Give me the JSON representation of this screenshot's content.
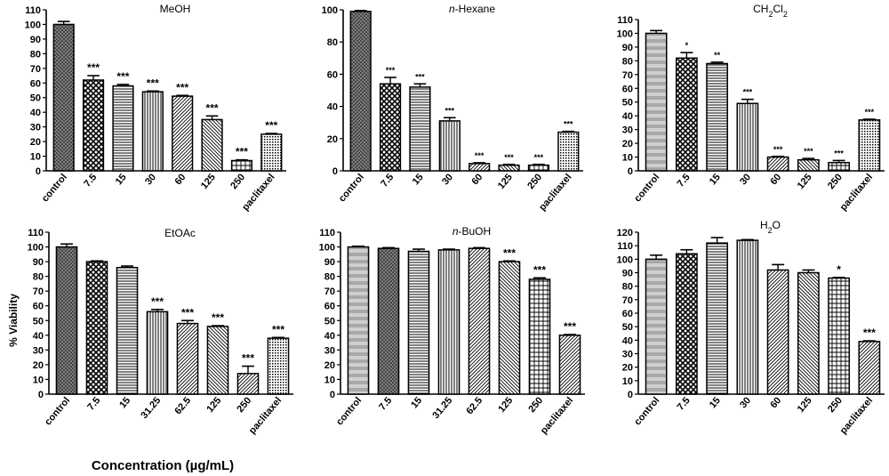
{
  "figure": {
    "shared_ylabel": "% Viability",
    "shared_xlabel": "Concentration (µg/mL)"
  },
  "chart_data": [
    {
      "type": "bar",
      "title_parts": [
        {
          "t": "MeOH"
        }
      ],
      "categories": [
        "control",
        "7.5",
        "15",
        "30",
        "60",
        "125",
        "250",
        "paclitaxel"
      ],
      "values": [
        100,
        62,
        58,
        54,
        51,
        35,
        7,
        25
      ],
      "errors": [
        2,
        3,
        1,
        0.5,
        0.5,
        2.5,
        0.5,
        0.5
      ],
      "significance": [
        "",
        "***",
        "***",
        "***",
        "***",
        "***",
        "***",
        "***"
      ],
      "ylim": [
        0,
        110
      ],
      "yticks": [
        0,
        10,
        20,
        30,
        40,
        50,
        60,
        70,
        80,
        90,
        100,
        110
      ],
      "patterns": [
        "p1",
        "p2",
        "p3",
        "p4",
        "p5",
        "p6",
        "p7",
        "p8"
      ]
    },
    {
      "type": "bar",
      "title_parts": [
        {
          "t": "n",
          "i": true
        },
        {
          "t": "-Hexane"
        }
      ],
      "categories": [
        "control",
        "7.5",
        "15",
        "30",
        "60",
        "125",
        "250",
        "paclitaxel"
      ],
      "values": [
        99,
        54,
        52,
        31,
        4.5,
        3.5,
        3.5,
        24
      ],
      "errors": [
        0.5,
        4,
        2,
        2,
        0.5,
        0.5,
        0.5,
        0.5
      ],
      "significance": [
        "",
        "***",
        "***",
        "***",
        "***",
        "***",
        "***",
        "***"
      ],
      "ylim": [
        0,
        100
      ],
      "yticks": [
        0,
        20,
        40,
        60,
        80,
        100
      ],
      "patterns": [
        "p1",
        "p2",
        "p3",
        "p4",
        "p5",
        "p6",
        "p7",
        "p8"
      ]
    },
    {
      "type": "bar",
      "title_parts": [
        {
          "t": "CH"
        },
        {
          "t": "2",
          "sub": true
        },
        {
          "t": "Cl"
        },
        {
          "t": "2",
          "sub": true
        }
      ],
      "categories": [
        "control",
        "7.5",
        "15",
        "30",
        "60",
        "125",
        "250",
        "paclitaxel"
      ],
      "values": [
        100,
        82,
        78,
        49,
        10,
        8,
        6,
        37
      ],
      "errors": [
        2,
        4,
        1,
        3,
        0.5,
        1,
        1.5,
        0.5
      ],
      "significance": [
        "",
        "*",
        "**",
        "***",
        "***",
        "***",
        "***",
        "***"
      ],
      "ylim": [
        0,
        110
      ],
      "yticks": [
        0,
        10,
        20,
        30,
        40,
        50,
        60,
        70,
        80,
        90,
        100,
        110
      ],
      "patterns": [
        "p9",
        "p2",
        "p3",
        "p4",
        "p5",
        "p6",
        "p7",
        "p8"
      ]
    },
    {
      "type": "bar",
      "title_parts": [
        {
          "t": "EtOAc"
        }
      ],
      "categories": [
        "control",
        "7.5",
        "15",
        "31.25",
        "62.5",
        "125",
        "250",
        "paclitaxel"
      ],
      "values": [
        100,
        90,
        86,
        56,
        48,
        46,
        14,
        38
      ],
      "errors": [
        2,
        0.5,
        1,
        1.5,
        2,
        0.5,
        5,
        0.5
      ],
      "significance": [
        "",
        "",
        "",
        "***",
        "***",
        "***",
        "***",
        "***"
      ],
      "ylim": [
        0,
        110
      ],
      "yticks": [
        0,
        10,
        20,
        30,
        40,
        50,
        60,
        70,
        80,
        90,
        100,
        110
      ],
      "patterns": [
        "p1",
        "p2",
        "p3",
        "p4",
        "p5",
        "p6",
        "p5",
        "p8"
      ]
    },
    {
      "type": "bar",
      "title_parts": [
        {
          "t": "n",
          "i": true
        },
        {
          "t": "-BuOH"
        }
      ],
      "categories": [
        "control",
        "7.5",
        "15",
        "31.25",
        "62.5",
        "125",
        "250",
        "paclitaxel"
      ],
      "values": [
        100,
        99,
        97,
        98,
        99,
        90,
        78,
        40
      ],
      "errors": [
        0.5,
        0.5,
        1.5,
        0.5,
        0.5,
        0.5,
        1,
        0.5
      ],
      "significance": [
        "",
        "",
        "",
        "",
        "",
        "***",
        "***",
        "***"
      ],
      "ylim": [
        0,
        110
      ],
      "yticks": [
        0,
        10,
        20,
        30,
        40,
        50,
        60,
        70,
        80,
        90,
        100,
        110
      ],
      "patterns": [
        "p9",
        "p1",
        "p3",
        "p4",
        "p5",
        "p6",
        "p7",
        "p5"
      ]
    },
    {
      "type": "bar",
      "title_parts": [
        {
          "t": "H"
        },
        {
          "t": "2",
          "sub": true
        },
        {
          "t": "O"
        }
      ],
      "categories": [
        "control",
        "7.5",
        "15",
        "30",
        "60",
        "125",
        "250",
        "paclitaxel"
      ],
      "values": [
        100,
        104,
        112,
        114,
        92,
        90,
        86,
        39
      ],
      "errors": [
        3,
        3,
        4,
        0.5,
        4,
        2,
        0.5,
        0.5
      ],
      "significance": [
        "",
        "",
        "",
        "",
        "",
        "",
        "*",
        "***"
      ],
      "ylim": [
        0,
        120
      ],
      "yticks": [
        0,
        10,
        20,
        30,
        40,
        50,
        60,
        70,
        80,
        90,
        100,
        110,
        120
      ],
      "patterns": [
        "p9",
        "p2",
        "p3",
        "p4",
        "p5",
        "p6",
        "p7",
        "p5"
      ]
    }
  ]
}
